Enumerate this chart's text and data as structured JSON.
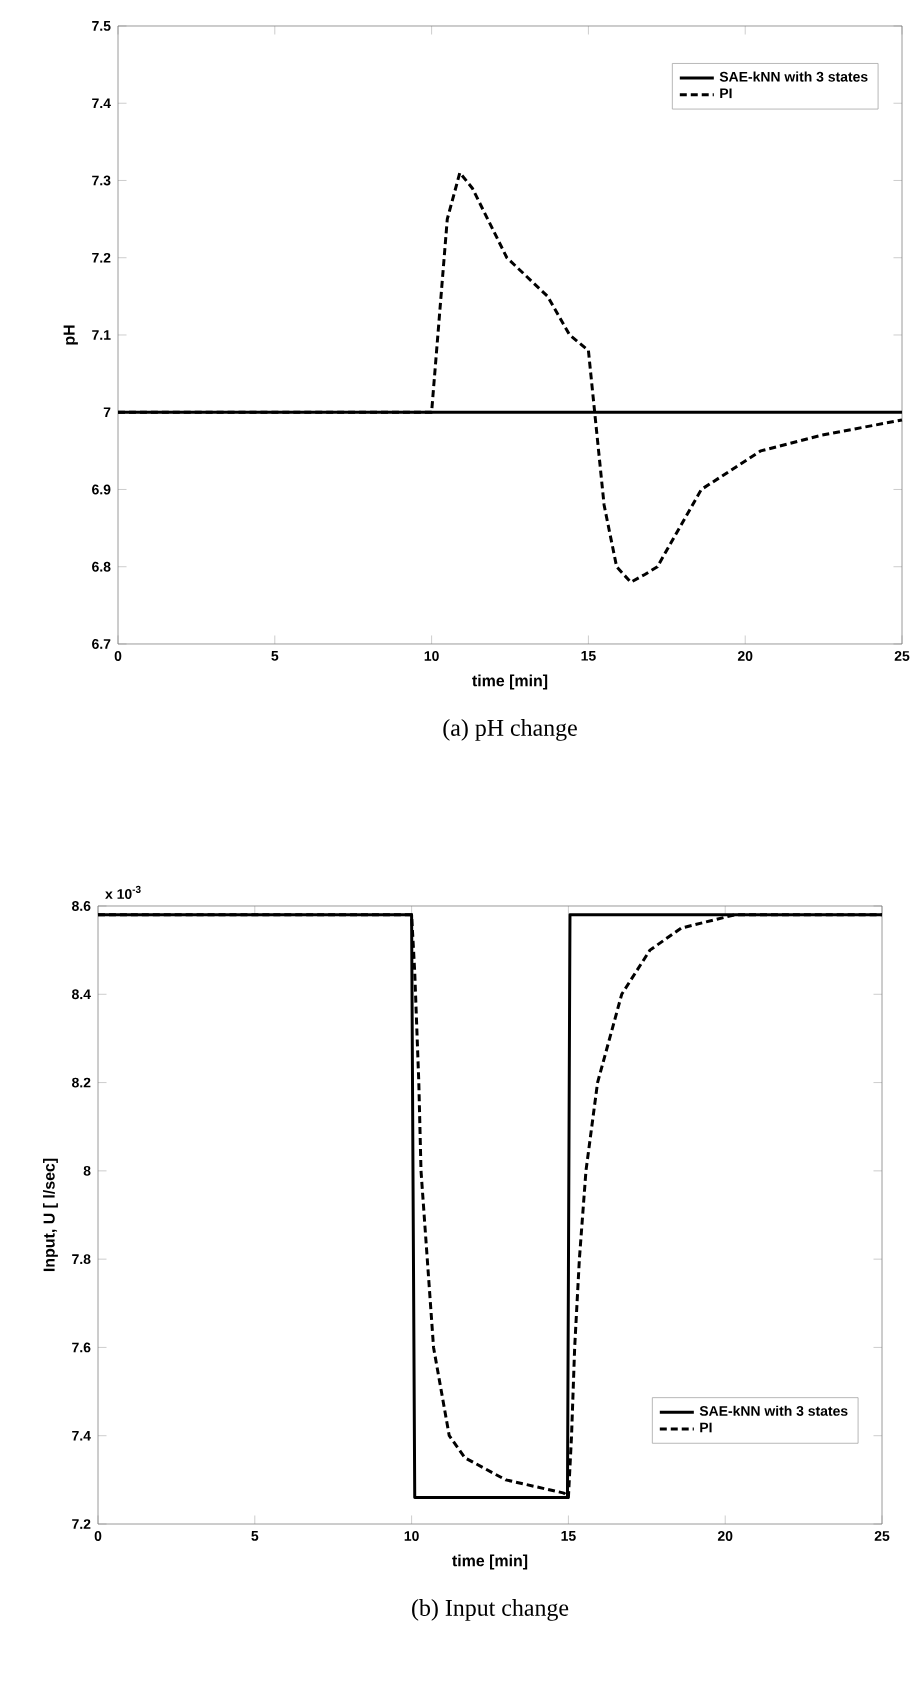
{
  "chart_data": [
    {
      "type": "line",
      "title": "(a) pH change",
      "xlabel": "time [min]",
      "ylabel": "pH",
      "xlim": [
        0,
        25
      ],
      "xticks": [
        0,
        5,
        10,
        15,
        20,
        25
      ],
      "ylim": [
        6.7,
        7.5
      ],
      "yticks": [
        6.7,
        6.8,
        6.9,
        7,
        7.1,
        7.2,
        7.3,
        7.4,
        7.5
      ],
      "legend": "top right",
      "series": [
        {
          "name": "SAE-kNN with 3 states",
          "color": "#000000",
          "line_style": "solid",
          "x": [
            0,
            25
          ],
          "values": [
            7,
            7
          ]
        },
        {
          "name": "PI",
          "color": "#000000",
          "line_style": "dashed",
          "x": [
            0,
            10,
            10.5,
            10.9,
            11.3,
            12.4,
            13.7,
            14.4,
            15,
            15.2,
            15.5,
            15.9,
            16.35,
            16.8,
            17.2,
            18.6,
            20.5,
            22.4,
            25
          ],
          "values": [
            7,
            7,
            7.25,
            7.31,
            7.29,
            7.2,
            7.15,
            7.1,
            7.08,
            7,
            6.88,
            6.8,
            6.78,
            6.79,
            6.8,
            6.9,
            6.95,
            6.97,
            6.99
          ]
        }
      ]
    },
    {
      "type": "line",
      "title": "(b) Input change",
      "xlabel": "time [min]",
      "ylabel": "Input, U [ l/sec]",
      "annotations": [
        "x 10$^{-3}$"
      ],
      "xlim": [
        0,
        25
      ],
      "xticks": [
        0,
        5,
        10,
        15,
        20,
        25
      ],
      "ylim": [
        7.2,
        8.6
      ],
      "yticks": [
        7.2,
        7.4,
        7.6,
        7.8,
        8,
        8.2,
        8.4,
        8.6
      ],
      "legend": "bottom right",
      "series": [
        {
          "name": "SAE-kNN with 3 states",
          "color": "#000000",
          "line_style": "solid",
          "x": [
            0,
            10,
            10.1,
            14.97,
            15.05,
            25
          ],
          "values": [
            8.58,
            8.58,
            7.26,
            7.26,
            8.58,
            8.58
          ]
        },
        {
          "name": "PI",
          "color": "#000000",
          "line_style": "dashed",
          "x": [
            0,
            10,
            10.1,
            10.23,
            10.3,
            10.5,
            10.7,
            11.2,
            11.7,
            13,
            14.86,
            15,
            15.1,
            15.2,
            15.35,
            15.56,
            15.93,
            16.7,
            17.6,
            18.6,
            20.3,
            25
          ],
          "values": [
            8.58,
            8.58,
            8.45,
            8.2,
            8.0,
            7.8,
            7.6,
            7.4,
            7.35,
            7.3,
            7.27,
            7.26,
            7.4,
            7.6,
            7.8,
            8.0,
            8.2,
            8.4,
            8.5,
            8.55,
            8.58,
            8.58
          ]
        }
      ]
    }
  ]
}
